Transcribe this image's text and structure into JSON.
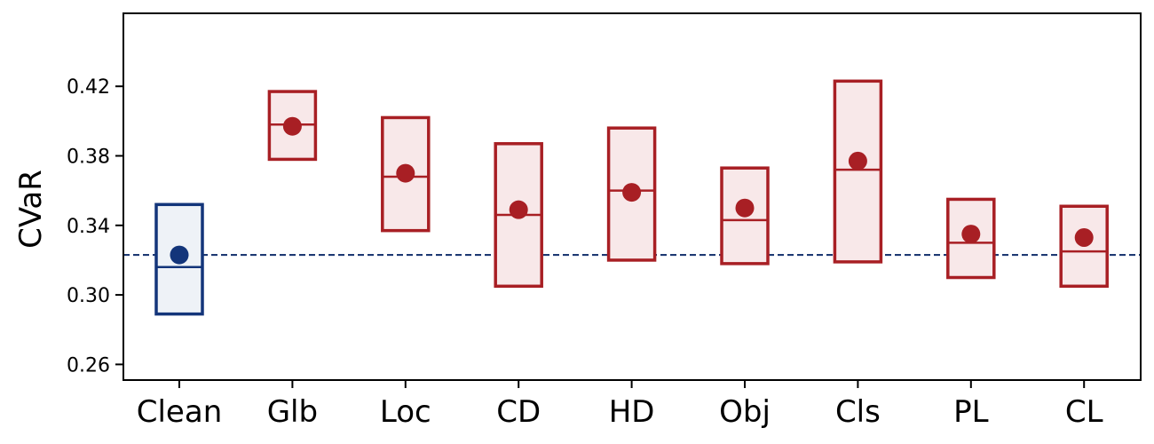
{
  "chart_data": {
    "type": "box",
    "title": "",
    "xlabel": "",
    "ylabel": "CVaR",
    "ylim": [
      0.251,
      0.462
    ],
    "yticks": [
      "0.26",
      "0.30",
      "0.34",
      "0.38",
      "0.42"
    ],
    "grid": false,
    "reference_line": {
      "y": 0.323,
      "style": "dashed",
      "color": "#1f3a73"
    },
    "categories": [
      "Clean",
      "Glb",
      "Loc",
      "CD",
      "HD",
      "Obj",
      "Cls",
      "PL",
      "CL"
    ],
    "boxes": [
      {
        "q1": 0.289,
        "median": 0.316,
        "q3": 0.352,
        "mean": 0.323
      },
      {
        "q1": 0.378,
        "median": 0.398,
        "q3": 0.417,
        "mean": 0.397
      },
      {
        "q1": 0.337,
        "median": 0.368,
        "q3": 0.402,
        "mean": 0.37
      },
      {
        "q1": 0.305,
        "median": 0.346,
        "q3": 0.387,
        "mean": 0.349
      },
      {
        "q1": 0.32,
        "median": 0.36,
        "q3": 0.396,
        "mean": 0.359
      },
      {
        "q1": 0.318,
        "median": 0.343,
        "q3": 0.373,
        "mean": 0.35
      },
      {
        "q1": 0.319,
        "median": 0.372,
        "q3": 0.423,
        "mean": 0.377
      },
      {
        "q1": 0.31,
        "median": 0.33,
        "q3": 0.355,
        "mean": 0.335
      },
      {
        "q1": 0.305,
        "median": 0.325,
        "q3": 0.351,
        "mean": 0.333
      }
    ],
    "colors": {
      "clean_edge": "#13357a",
      "clean_fill": "#eef2f7",
      "attack_edge": "#a81f24",
      "attack_fill": "#f8e8e9"
    }
  }
}
